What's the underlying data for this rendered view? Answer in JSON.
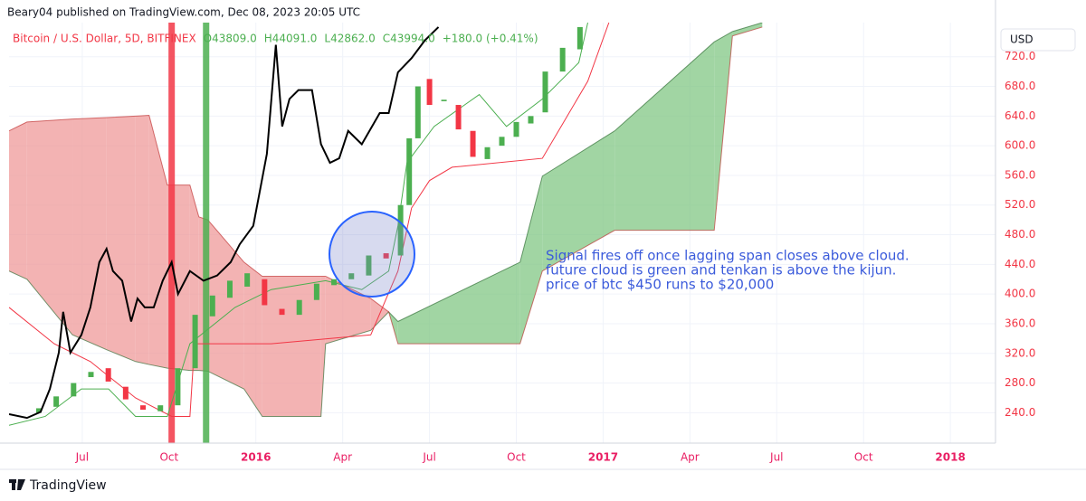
{
  "chart_data": {
    "type": "candlestick",
    "header": "Beary04 published on TradingView.com, Dec 08, 2023 20:05 UTC",
    "symbol": "Bitcoin / U.S. Dollar, 5D, BITFINEX",
    "ohlc_labels": [
      "O43809.0",
      "H44091.0",
      "L42862.0",
      "C43994.0",
      "+180.0 (+0.41%)"
    ],
    "currency": "USD",
    "brand": "TradingView",
    "annotation": [
      "Signal fires off once lagging span closes above cloud.",
      "future cloud is green and tenkan is above the kijun.",
      "price of btc $450 runs to $20,000"
    ],
    "annotation_color": "#3b5bdb",
    "xlim": [
      3.47,
      37.56
    ],
    "xticks": [
      {
        "value": 6,
        "label": "Jul"
      },
      {
        "value": 9,
        "label": "Oct"
      },
      {
        "value": 12,
        "label": "2016"
      },
      {
        "value": 15,
        "label": "Apr"
      },
      {
        "value": 18,
        "label": "Jul"
      },
      {
        "value": 21,
        "label": "Oct"
      },
      {
        "value": 24,
        "label": "2017"
      },
      {
        "value": 27,
        "label": "Apr"
      },
      {
        "value": 30,
        "label": "Jul"
      },
      {
        "value": 33,
        "label": "Oct"
      },
      {
        "value": 36,
        "label": "2018"
      }
    ],
    "ylim": [
      199,
      766
    ],
    "yticks": [
      {
        "value": 240,
        "label": "240.0"
      },
      {
        "value": 280,
        "label": "280.0"
      },
      {
        "value": 320,
        "label": "320.0"
      },
      {
        "value": 360,
        "label": "360.0"
      },
      {
        "value": 400,
        "label": "400.0"
      },
      {
        "value": 440,
        "label": "440.0"
      },
      {
        "value": 480,
        "label": "480.0"
      },
      {
        "value": 520,
        "label": "520.0"
      },
      {
        "value": 560,
        "label": "560.0"
      },
      {
        "value": 600,
        "label": "600.0"
      },
      {
        "value": 640,
        "label": "640.0"
      },
      {
        "value": 680,
        "label": "680.0"
      },
      {
        "value": 720,
        "label": "720.0"
      }
    ],
    "grid": true,
    "cloud": {
      "x": [
        3.47,
        4.09,
        5.66,
        6.84,
        7.84,
        8.31,
        8.94,
        9.72,
        10.03,
        10.34,
        11.59,
        12.22,
        14.25,
        14.41,
        15.97,
        16.59,
        16.91,
        21.13,
        21.9,
        24.4,
        27.84,
        28.47,
        29.5
      ],
      "span_a": [
        431,
        420,
        345,
        325,
        309,
        305,
        300,
        297,
        297,
        296,
        272,
        235,
        235,
        333,
        351,
        376,
        363,
        443,
        559,
        620,
        740,
        754,
        766
      ],
      "span_b": [
        620,
        632,
        636,
        638,
        640,
        641,
        547,
        547,
        504,
        500,
        443,
        424,
        424,
        424,
        394,
        376,
        333,
        333,
        431,
        486,
        486,
        748,
        760
      ],
      "up_color": "#81c784",
      "down_color": "#ef9a9a"
    },
    "highlights": [
      {
        "x": 9.09,
        "color": "#f23645"
      },
      {
        "x": 10.28,
        "color": "#4caf50"
      }
    ],
    "series": [
      {
        "color": "#f23645",
        "width": 1,
        "x": [
          3.47,
          5.03,
          6.28,
          7.84,
          9.09,
          9.72,
          9.88,
          12.53,
          15.97,
          16.91,
          17.38,
          18.0,
          18.78,
          21.9,
          23.47,
          24.2
        ],
        "values": [
          382,
          333,
          309,
          260,
          235,
          235,
          333,
          333,
          345,
          431,
          516,
          553,
          571,
          583,
          687,
          766
        ]
      },
      {
        "color": "#4caf50",
        "width": 1,
        "x": [
          3.47,
          4.72,
          5.97,
          6.91,
          7.84,
          8.94,
          9.72,
          11.28,
          12.53,
          14.41,
          15.66,
          16.59,
          16.91,
          17.22,
          18.16,
          19.72,
          20.66,
          21.9,
          23.16,
          23.47
        ],
        "values": [
          223,
          235,
          272,
          272,
          235,
          235,
          333,
          382,
          406,
          418,
          406,
          431,
          492,
          577,
          626,
          669,
          626,
          663,
          712,
          766
        ]
      },
      {
        "color": "#000000",
        "width": 2,
        "x": [
          3.47,
          4.09,
          4.56,
          4.88,
          5.19,
          5.34,
          5.59,
          5.97,
          6.28,
          6.59,
          6.84,
          7.06,
          7.38,
          7.69,
          7.91,
          8.16,
          8.47,
          8.78,
          9.09,
          9.31,
          9.72,
          10.19,
          10.66,
          11.13,
          11.44,
          11.91,
          12.38,
          12.69,
          12.91,
          13.16,
          13.47,
          13.94,
          14.25,
          14.56,
          14.88,
          15.19,
          15.66,
          16.28,
          16.59,
          16.91,
          17.38,
          17.84,
          18.31
        ],
        "values": [
          238,
          233,
          241,
          272,
          321,
          376,
          321,
          345,
          382,
          443,
          461,
          431,
          418,
          363,
          394,
          382,
          382,
          418,
          443,
          400,
          431,
          418,
          425,
          443,
          467,
          492,
          589,
          736,
          626,
          663,
          675,
          675,
          602,
          577,
          583,
          620,
          602,
          644,
          644,
          699,
          718,
          742,
          760
        ]
      }
    ],
    "candles": {
      "up_color": "#4caf50",
      "down_color": "#f23645",
      "x": [
        4.5,
        5.1,
        5.7,
        6.3,
        6.9,
        7.5,
        8.1,
        8.7,
        9.3,
        9.9,
        10.5,
        11.1,
        11.7,
        12.3,
        12.9,
        13.5,
        14.1,
        14.7,
        15.3,
        15.9,
        16.5,
        17.0,
        17.3,
        17.6,
        18.0,
        18.5,
        19.0,
        19.5,
        20.0,
        20.5,
        21.0,
        21.5,
        22.0,
        22.6,
        23.2
      ],
      "open": [
        240,
        248,
        262,
        288,
        300,
        275,
        250,
        242,
        250,
        300,
        370,
        395,
        410,
        420,
        380,
        372,
        392,
        412,
        420,
        425,
        455,
        452,
        520,
        610,
        690,
        660,
        655,
        620,
        582,
        600,
        612,
        630,
        645,
        700,
        730
      ],
      "close": [
        246,
        262,
        280,
        295,
        282,
        258,
        244,
        250,
        300,
        372,
        398,
        418,
        428,
        385,
        372,
        392,
        414,
        420,
        428,
        452,
        448,
        520,
        610,
        680,
        655,
        662,
        622,
        585,
        598,
        612,
        632,
        640,
        700,
        732,
        760
      ]
    }
  }
}
